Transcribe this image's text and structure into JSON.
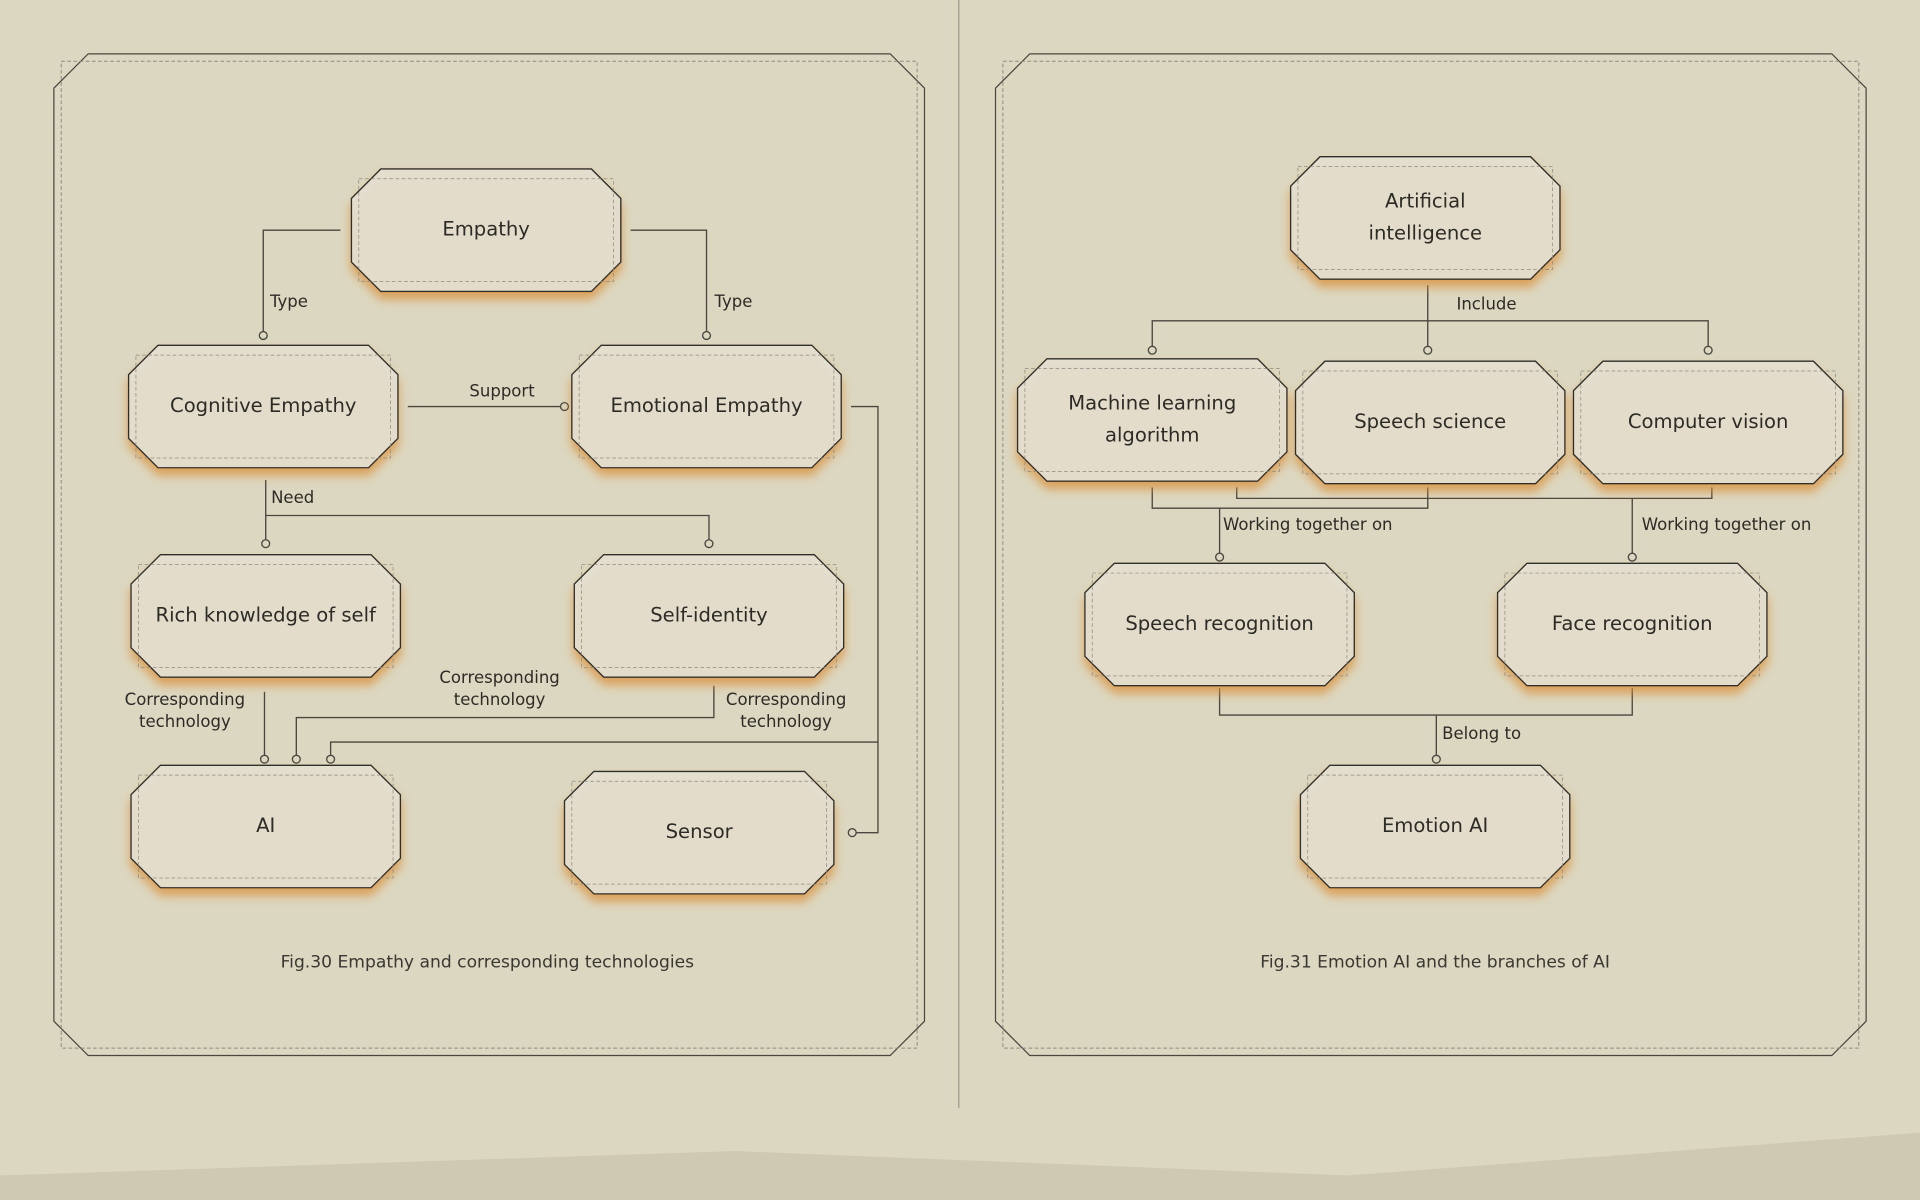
{
  "figures": [
    {
      "caption": "Fig.30 Empathy and corresponding technologies",
      "nodes": [
        {
          "label": [
            "Empathy"
          ]
        },
        {
          "label": [
            "Cognitive Empathy"
          ]
        },
        {
          "label": [
            "Emotional Empathy"
          ]
        },
        {
          "label": [
            "Rich knowledge of self"
          ]
        },
        {
          "label": [
            "Self-identity"
          ]
        },
        {
          "label": [
            "AI"
          ]
        },
        {
          "label": [
            "Sensor"
          ]
        }
      ],
      "edge_labels": [
        {
          "label": [
            "Type"
          ]
        },
        {
          "label": [
            "Type"
          ]
        },
        {
          "label": [
            "Support"
          ]
        },
        {
          "label": [
            "Need"
          ]
        },
        {
          "label": [
            "Corresponding",
            "technology"
          ]
        },
        {
          "label": [
            "Corresponding",
            "technology"
          ]
        },
        {
          "label": [
            "Corresponding",
            "technology"
          ]
        }
      ]
    },
    {
      "caption": "Fig.31 Emotion AI and the branches of AI",
      "nodes": [
        {
          "label": [
            "Artificial",
            "intelligence"
          ]
        },
        {
          "label": [
            "Machine learning",
            "algorithm"
          ]
        },
        {
          "label": [
            "Speech science"
          ]
        },
        {
          "label": [
            "Computer vision"
          ]
        },
        {
          "label": [
            "Speech recognition"
          ]
        },
        {
          "label": [
            "Face recognition"
          ]
        },
        {
          "label": [
            "Emotion AI"
          ]
        }
      ],
      "edge_labels": [
        {
          "label": [
            "Include"
          ]
        },
        {
          "label": [
            "Working together on"
          ]
        },
        {
          "label": [
            "Working together on"
          ]
        },
        {
          "label": [
            "Belong to"
          ]
        }
      ]
    }
  ]
}
